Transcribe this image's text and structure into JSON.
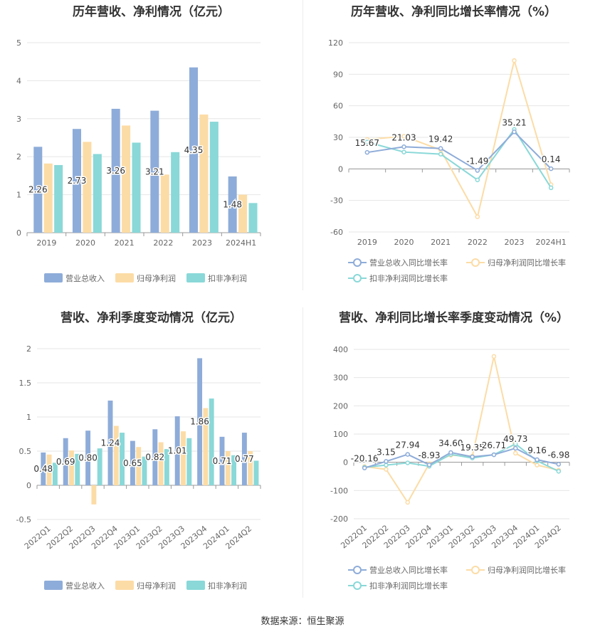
{
  "source": "数据来源：恒生聚源",
  "colors": {
    "revenue": "#8eacd9",
    "parent_profit": "#fcdca6",
    "deducted_profit": "#8ad8d8",
    "axis": "#999999",
    "grid": "#e6e6e6"
  },
  "chart_data": [
    {
      "type": "bar",
      "title": "历年营收、净利情况（亿元）",
      "categories": [
        "2019",
        "2020",
        "2021",
        "2022",
        "2023",
        "2024H1"
      ],
      "series": [
        {
          "name": "营业总收入",
          "values": [
            2.26,
            2.73,
            3.26,
            3.21,
            4.35,
            1.48
          ],
          "labels": [
            "2.26",
            "2.73",
            "3.26",
            "3.21",
            "4.35",
            "1.48"
          ]
        },
        {
          "name": "归母净利润",
          "values": [
            1.82,
            2.39,
            2.82,
            1.53,
            3.11,
            1.0
          ]
        },
        {
          "name": "扣非净利润",
          "values": [
            1.78,
            2.07,
            2.37,
            2.12,
            2.92,
            0.78
          ]
        }
      ],
      "ylim": [
        0,
        5
      ],
      "yticks": [
        "0",
        "1",
        "2",
        "3",
        "4",
        "5"
      ],
      "grid": true,
      "legend": "bottom"
    },
    {
      "type": "line",
      "title": "历年营收、净利同比增长率情况（%）",
      "categories": [
        "2019",
        "2020",
        "2021",
        "2022",
        "2023",
        "2024H1"
      ],
      "series": [
        {
          "name": "营业总收入同比增长率",
          "values": [
            15.67,
            21.03,
            19.42,
            -1.49,
            35.21,
            0.14
          ],
          "labels": [
            "15.67",
            "21.03",
            "19.42",
            "-1.49",
            "35.21",
            "0.14"
          ]
        },
        {
          "name": "归母净利润同比增长率",
          "values": [
            28.0,
            31.0,
            18.0,
            -45.5,
            103.0,
            -15.0
          ]
        },
        {
          "name": "扣非净利润同比增长率",
          "values": [
            25.5,
            16.0,
            14.0,
            -10.5,
            37.5,
            -18.0
          ]
        }
      ],
      "ylim": [
        -60,
        120
      ],
      "yticks": [
        "120",
        "90",
        "60",
        "30",
        "0",
        "-30",
        "-60"
      ],
      "grid": true,
      "legend": "bottom"
    },
    {
      "type": "bar",
      "title": "营收、净利季度变动情况（亿元）",
      "categories": [
        "2022Q1",
        "2022Q2",
        "2022Q3",
        "2022Q4",
        "2023Q1",
        "2023Q2",
        "2023Q3",
        "2023Q4",
        "2024Q1",
        "2024Q2"
      ],
      "series": [
        {
          "name": "营业总收入",
          "values": [
            0.48,
            0.69,
            0.8,
            1.24,
            0.65,
            0.82,
            1.01,
            1.86,
            0.71,
            0.77
          ],
          "labels": [
            "0.48",
            "0.69",
            "0.80",
            "1.24",
            "0.65",
            "0.82",
            "1.01",
            "1.86",
            "0.71",
            "0.77"
          ]
        },
        {
          "name": "归母净利润",
          "values": [
            0.45,
            0.51,
            -0.28,
            0.87,
            0.56,
            0.63,
            0.79,
            1.13,
            0.5,
            0.5
          ]
        },
        {
          "name": "扣非净利润",
          "values": [
            0.33,
            0.46,
            0.54,
            0.77,
            0.42,
            0.53,
            0.69,
            1.27,
            0.44,
            0.36
          ]
        }
      ],
      "ylim": [
        -0.5,
        2
      ],
      "yticks": [
        "2",
        "1.5",
        "1",
        "0.5",
        "0",
        "-0.5"
      ],
      "grid": true,
      "legend": "bottom"
    },
    {
      "type": "line",
      "title": "营收、净利同比增长率季度变动情况（%）",
      "categories": [
        "2022Q1",
        "2022Q2",
        "2022Q3",
        "2022Q4",
        "2023Q1",
        "2023Q2",
        "2023Q3",
        "2023Q4",
        "2024Q1",
        "2024Q2"
      ],
      "series": [
        {
          "name": "营业总收入同比增长率",
          "values": [
            -20.16,
            3.15,
            27.94,
            -8.93,
            34.6,
            19.35,
            26.71,
            49.73,
            9.16,
            -6.98
          ],
          "labels": [
            "-20.16",
            "3.15",
            "27.94",
            "-8.93",
            "34.60",
            "19.35",
            "26.71",
            "49.73",
            "9.16",
            "-6.98"
          ]
        },
        {
          "name": "归母净利润同比增长率",
          "values": [
            -15.0,
            -25.0,
            -142.0,
            -5.0,
            25.0,
            22.0,
            375.0,
            32.0,
            -10.0,
            -28.0
          ]
        },
        {
          "name": "扣非净利润同比增长率",
          "values": [
            -18.0,
            -10.0,
            -2.0,
            -14.0,
            28.0,
            15.0,
            27.0,
            65.0,
            5.0,
            -32.0
          ]
        }
      ],
      "ylim": [
        -200,
        400
      ],
      "yticks": [
        "400",
        "300",
        "200",
        "100",
        "0",
        "-100",
        "-200"
      ],
      "grid": true,
      "legend": "bottom"
    }
  ]
}
